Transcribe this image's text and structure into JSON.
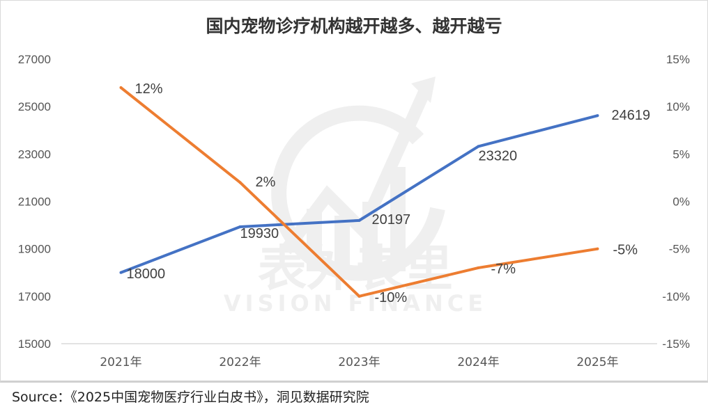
{
  "chart_data": {
    "type": "line",
    "title": "国内宠物诊疗机构越开越多、越开越亏",
    "categories": [
      "2021年",
      "2022年",
      "2023年",
      "2024年",
      "2025年"
    ],
    "series": [
      {
        "axis": "left",
        "color": "#4472C4",
        "values": [
          18000,
          19930,
          20197,
          23320,
          24619
        ],
        "labels": [
          "18000",
          "19930",
          "20197",
          "23320",
          "24619"
        ]
      },
      {
        "axis": "right",
        "color": "#ED7D31",
        "values": [
          12,
          2,
          -10,
          -7,
          -5
        ],
        "labels": [
          "12%",
          "2%",
          "-10%",
          "-7%",
          "-5%"
        ]
      }
    ],
    "left_axis": {
      "ylim": [
        15000,
        27000
      ],
      "ticks": [
        "15000",
        "17000",
        "19000",
        "21000",
        "23000",
        "25000",
        "27000"
      ]
    },
    "right_axis": {
      "ylim": [
        -15,
        15
      ],
      "ticks": [
        "-15%",
        "-10%",
        "-5%",
        "0%",
        "5%",
        "10%",
        "15%"
      ]
    },
    "grid": false,
    "legend": "none"
  },
  "watermark": {
    "cn": "表外表里",
    "en": "VISION FINANCE"
  },
  "source": "Source：《2025中国宠物医疗行业白皮书》，洞见数据研究院"
}
